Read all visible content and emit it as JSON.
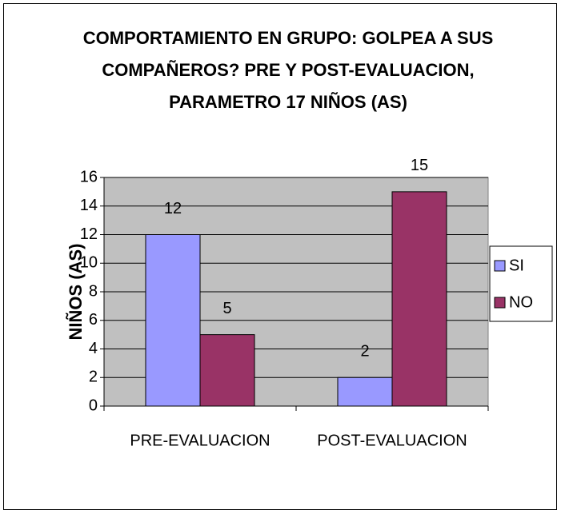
{
  "chart_data": {
    "type": "bar",
    "title": "COMPORTAMIENTO EN GRUPO: GOLPEA A SUS COMPAÑEROS? PRE Y POST-EVALUACION, PARAMETRO 17 NIÑOS (AS)",
    "y_label": "NIÑOS (AS)",
    "categories": [
      "PRE-EVALUACION",
      "POST-EVALUACION"
    ],
    "series": [
      {
        "name": "SI",
        "color": "#9999ff",
        "values": [
          12,
          2
        ]
      },
      {
        "name": "NO",
        "color": "#993366",
        "values": [
          5,
          15
        ]
      }
    ],
    "ylim": [
      0,
      16
    ],
    "yticks": [
      0,
      2,
      4,
      6,
      8,
      10,
      12,
      14,
      16
    ],
    "grid": true,
    "legend": "right",
    "plot_background": "#c0c0c0"
  }
}
